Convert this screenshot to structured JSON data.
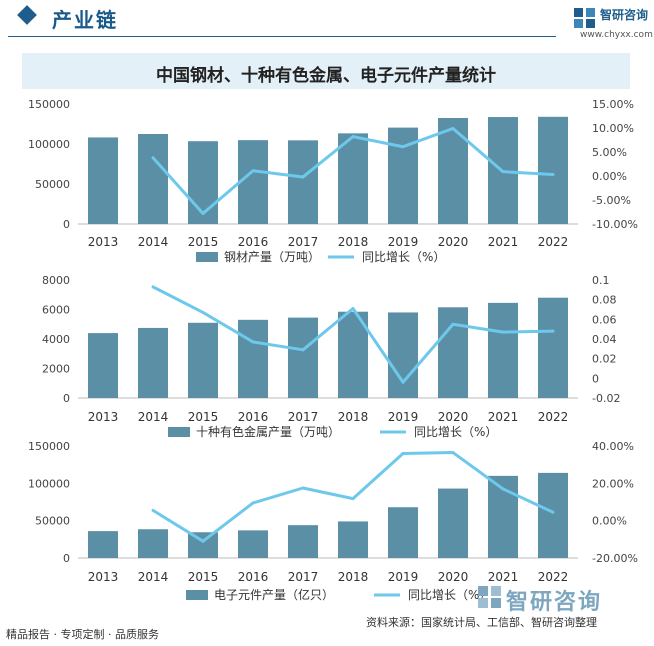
{
  "header": {
    "section_title": "产业链",
    "logo_name": "智研咨询",
    "logo_url": "www.chyxx.com"
  },
  "chart_title": "中国钢材、十种有色金属、电子元件产量统计",
  "colors": {
    "bar": "#5b8fa6",
    "line": "#6ec8ec",
    "accent": "#1f5e8c"
  },
  "chart_data": [
    {
      "type": "bar",
      "categories": [
        "2013",
        "2014",
        "2015",
        "2016",
        "2017",
        "2018",
        "2019",
        "2020",
        "2021",
        "2022"
      ],
      "series": [
        {
          "name": "钢材产量（万吨）",
          "type": "bar",
          "axis": "left",
          "values": [
            108200,
            112500,
            103500,
            104800,
            104600,
            113300,
            120500,
            132500,
            133700,
            134000
          ]
        },
        {
          "name": "同比增长（%）",
          "type": "line",
          "axis": "right",
          "values": [
            null,
            3.8,
            -7.8,
            1.1,
            -0.2,
            8.2,
            6.1,
            9.9,
            0.9,
            0.3
          ]
        }
      ],
      "y_left": {
        "min": 0,
        "max": 150000,
        "ticks": [
          "0",
          "50000",
          "100000",
          "150000"
        ]
      },
      "y_right": {
        "min": -10,
        "max": 15,
        "ticks": [
          "-10.00%",
          "-5.00%",
          "0.00%",
          "5.00%",
          "10.00%",
          "15.00%"
        ]
      }
    },
    {
      "type": "bar",
      "categories": [
        "2013",
        "2014",
        "2015",
        "2016",
        "2017",
        "2018",
        "2019",
        "2020",
        "2021",
        "2022"
      ],
      "series": [
        {
          "name": "十种有色金属产量（万吨）",
          "type": "bar",
          "axis": "left",
          "values": [
            4400,
            4750,
            5100,
            5300,
            5450,
            5850,
            5800,
            6150,
            6450,
            6800
          ]
        },
        {
          "name": "同比增长（%）",
          "type": "line",
          "axis": "right",
          "values": [
            null,
            0.093,
            0.067,
            0.037,
            0.029,
            0.071,
            -0.004,
            0.055,
            0.047,
            0.048
          ]
        }
      ],
      "y_left": {
        "min": 0,
        "max": 8000,
        "ticks": [
          "0",
          "2000",
          "4000",
          "6000",
          "8000"
        ]
      },
      "y_right": {
        "min": -0.02,
        "max": 0.1,
        "ticks": [
          "-0.02",
          "0",
          "0.02",
          "0.04",
          "0.06",
          "0.08",
          "0.1"
        ]
      }
    },
    {
      "type": "bar",
      "categories": [
        "2013",
        "2014",
        "2015",
        "2016",
        "2017",
        "2018",
        "2019",
        "2020",
        "2021",
        "2022"
      ],
      "series": [
        {
          "name": "电子元件产量（亿只）",
          "type": "bar",
          "axis": "left",
          "values": [
            36000,
            38500,
            34500,
            37000,
            44000,
            49000,
            68000,
            93000,
            110000,
            114000
          ]
        },
        {
          "name": "同比增长（%）",
          "type": "line",
          "axis": "right",
          "values": [
            null,
            5.5,
            -11.0,
            9.5,
            17.5,
            11.8,
            36.0,
            36.5,
            17.0,
            4.5
          ]
        }
      ],
      "y_left": {
        "min": 0,
        "max": 150000,
        "ticks": [
          "0",
          "50000",
          "100000",
          "150000"
        ]
      },
      "y_right": {
        "min": -20,
        "max": 40,
        "ticks": [
          "-20.00%",
          "0.00%",
          "20.00%",
          "40.00%"
        ]
      }
    }
  ],
  "footer": {
    "left": "精品报告 · 专项定制 · 品质服务",
    "source": "资料来源：国家统计局、工信部、智研咨询整理",
    "brand": "智研咨询"
  }
}
